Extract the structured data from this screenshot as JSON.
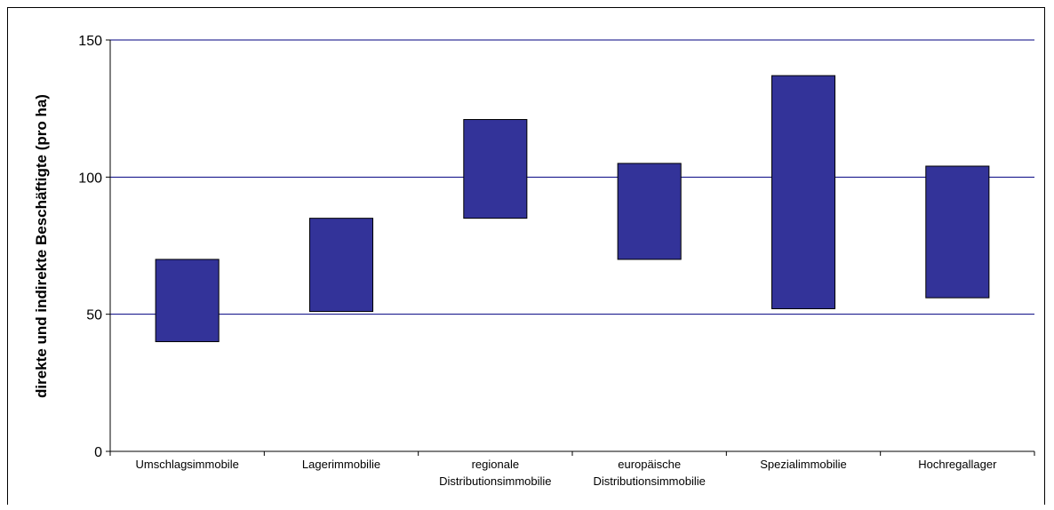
{
  "chart_data": {
    "type": "bar",
    "subtype": "floating-range",
    "title": "",
    "xlabel": "",
    "ylabel": "direkte und indirekte Beschäftigte (pro ha)",
    "ylim": [
      0,
      150
    ],
    "yticks": [
      0,
      50,
      100,
      150
    ],
    "grid": true,
    "legend": "none",
    "categories": [
      [
        "Umschlagsimmobile"
      ],
      [
        "Lagerimmobilie"
      ],
      [
        "regionale",
        "Distributionsimmobilie"
      ],
      [
        "europäische",
        "Distributionsimmobilie"
      ],
      [
        "Spezialimmobilie"
      ],
      [
        "Hochregallager"
      ]
    ],
    "ranges": [
      [
        40,
        70
      ],
      [
        51,
        85
      ],
      [
        85,
        121
      ],
      [
        70,
        105
      ],
      [
        52,
        137
      ],
      [
        56,
        104
      ]
    ],
    "colors": {
      "bar_fill": "#333399",
      "bar_stroke": "#000000",
      "grid": "#000080",
      "axis": "#000000"
    }
  }
}
